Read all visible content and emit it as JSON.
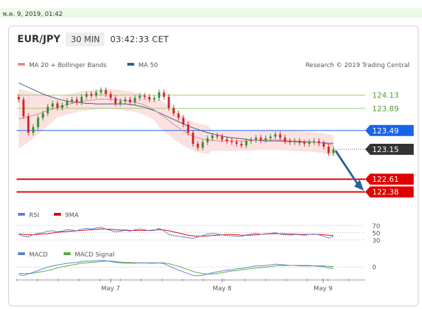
{
  "timestamp": "พ.ค. 9, 2019, 01:42",
  "header": {
    "pair": "EUR/JPY",
    "timeframe": "30 MIN",
    "time": "03:42:33 CET"
  },
  "legend": {
    "ma20_bb": "MA 20 + Bollinger Bands",
    "ma50": "MA 50",
    "credit": "Research © 2019 Trading Central",
    "rsi": "RSI",
    "rsi_ma": "9MA",
    "macd": "MACD",
    "macd_signal": "MACD Signal"
  },
  "colors": {
    "ma20": "#e58a8a",
    "ma50": "#3a5a8c",
    "band": "#fbdcdc",
    "resistance": "#9acd6e",
    "pivot": "#1565e8",
    "support": "#e00000",
    "price_label": "#333333",
    "up": "#2e8b2e",
    "down": "#d12020",
    "arrow": "#2a5fa0"
  },
  "chart_data": [
    {
      "type": "candlestick",
      "title": "EUR/JPY",
      "ylim": [
        122.2,
        124.5
      ],
      "x_labels": [
        "May 7",
        "May 8",
        "May 9"
      ],
      "levels": [
        {
          "value": 124.13,
          "label": "124.13",
          "kind": "resistance"
        },
        {
          "value": 123.89,
          "label": "123.89",
          "kind": "resistance"
        },
        {
          "value": 123.49,
          "label": "123.49",
          "kind": "pivot"
        },
        {
          "value": 122.61,
          "label": "122.61",
          "kind": "support"
        },
        {
          "value": 122.38,
          "label": "122.38",
          "kind": "support"
        }
      ],
      "last_price": {
        "value": 123.15,
        "label": "123.15"
      },
      "close": [
        124.05,
        123.75,
        123.45,
        123.55,
        123.72,
        123.8,
        123.92,
        123.98,
        123.9,
        123.95,
        124.02,
        124.05,
        124.0,
        124.1,
        124.15,
        124.12,
        124.18,
        124.22,
        124.15,
        124.08,
        123.98,
        124.02,
        124.05,
        124.0,
        124.08,
        124.12,
        124.1,
        124.05,
        124.08,
        124.18,
        124.1,
        123.9,
        123.8,
        123.72,
        123.6,
        123.45,
        123.25,
        123.18,
        123.28,
        123.35,
        123.4,
        123.38,
        123.33,
        123.3,
        123.28,
        123.25,
        123.22,
        123.3,
        123.32,
        123.36,
        123.32,
        123.35,
        123.38,
        123.42,
        123.36,
        123.3,
        123.28,
        123.3,
        123.27,
        123.25,
        123.28,
        123.3,
        123.26,
        123.2,
        123.08,
        123.15
      ],
      "ma20": [
        123.7,
        123.72,
        123.74,
        123.76,
        123.79,
        123.82,
        123.85,
        123.88,
        123.91,
        123.93,
        123.96,
        123.98,
        124.0,
        124.02,
        124.03,
        124.04,
        124.05,
        124.06,
        124.06,
        124.06,
        124.05,
        124.04,
        124.03,
        124.02,
        124.0,
        123.98,
        123.95,
        123.91,
        123.86,
        123.8,
        123.74,
        123.67,
        123.6,
        123.54,
        123.48,
        123.43,
        123.39,
        123.36,
        123.34,
        123.32,
        123.31,
        123.3,
        123.3,
        123.3,
        123.3,
        123.3,
        123.3,
        123.3,
        123.31,
        123.31,
        123.32,
        123.32,
        123.32,
        123.32,
        123.32,
        123.31,
        123.31,
        123.3,
        123.3,
        123.29,
        123.29,
        123.28,
        123.27,
        123.26,
        123.24,
        123.22
      ],
      "ma50": [
        124.35,
        124.31,
        124.27,
        124.23,
        124.19,
        124.15,
        124.12,
        124.09,
        124.06,
        124.04,
        124.02,
        124.01,
        124.0,
        123.99,
        123.98,
        123.98,
        123.97,
        123.97,
        123.97,
        123.97,
        123.97,
        123.97,
        123.97,
        123.96,
        123.95,
        123.93,
        123.91,
        123.88,
        123.85,
        123.81,
        123.77,
        123.73,
        123.69,
        123.65,
        123.61,
        123.57,
        123.54,
        123.51,
        123.48,
        123.45,
        123.43,
        123.41,
        123.39,
        123.37,
        123.36,
        123.35,
        123.34,
        123.33,
        123.32,
        123.31,
        123.31,
        123.3,
        123.3,
        123.3,
        123.3,
        123.29,
        123.29,
        123.29,
        123.28,
        123.28,
        123.28,
        123.28,
        123.27,
        123.27,
        123.26,
        123.26
      ]
    },
    {
      "type": "line",
      "title": "RSI",
      "ylim": [
        30,
        70
      ],
      "y_ticks": [
        "70",
        "50",
        "30"
      ],
      "rsi": [
        45,
        40,
        38,
        44,
        48,
        50,
        54,
        55,
        52,
        54,
        58,
        57,
        55,
        60,
        62,
        60,
        63,
        65,
        60,
        56,
        52,
        54,
        56,
        54,
        58,
        60,
        58,
        55,
        56,
        62,
        55,
        45,
        42,
        40,
        38,
        36,
        34,
        38,
        42,
        46,
        48,
        46,
        44,
        42,
        41,
        40,
        39,
        44,
        46,
        48,
        45,
        47,
        48,
        50,
        46,
        44,
        43,
        45,
        44,
        43,
        45,
        46,
        44,
        40,
        35,
        40
      ],
      "rsi_ma": [
        46,
        45,
        44,
        44,
        45,
        46,
        47,
        49,
        51,
        52,
        53,
        54,
        55,
        56,
        57,
        58,
        59,
        60,
        60,
        59,
        58,
        57,
        57,
        56,
        56,
        56,
        56,
        56,
        57,
        58,
        57,
        55,
        52,
        49,
        46,
        43,
        41,
        40,
        40,
        41,
        42,
        43,
        44,
        45,
        45,
        44,
        43,
        43,
        43,
        44,
        45,
        46,
        47,
        47,
        47,
        47,
        46,
        46,
        45,
        45,
        45,
        45,
        45,
        44,
        43,
        42
      ]
    },
    {
      "type": "line",
      "title": "MACD",
      "ylim": [
        -0.25,
        0.2
      ],
      "y_ticks": [
        "0"
      ],
      "macd": [
        -0.18,
        -0.19,
        -0.16,
        -0.12,
        -0.08,
        -0.04,
        0.0,
        0.03,
        0.05,
        0.07,
        0.09,
        0.1,
        0.11,
        0.13,
        0.14,
        0.14,
        0.15,
        0.16,
        0.15,
        0.13,
        0.11,
        0.1,
        0.09,
        0.09,
        0.09,
        0.1,
        0.1,
        0.09,
        0.09,
        0.1,
        0.08,
        0.03,
        -0.02,
        -0.07,
        -0.11,
        -0.15,
        -0.19,
        -0.2,
        -0.19,
        -0.16,
        -0.13,
        -0.11,
        -0.09,
        -0.07,
        -0.06,
        -0.04,
        -0.03,
        -0.01,
        0.01,
        0.03,
        0.03,
        0.04,
        0.05,
        0.07,
        0.06,
        0.05,
        0.04,
        0.04,
        0.03,
        0.03,
        0.03,
        0.03,
        0.02,
        0.01,
        -0.02,
        -0.03
      ],
      "signal": [
        -0.14,
        -0.15,
        -0.15,
        -0.14,
        -0.12,
        -0.1,
        -0.08,
        -0.05,
        -0.02,
        0.01,
        0.03,
        0.05,
        0.07,
        0.09,
        0.1,
        0.11,
        0.12,
        0.13,
        0.14,
        0.14,
        0.13,
        0.12,
        0.11,
        0.11,
        0.1,
        0.1,
        0.1,
        0.1,
        0.1,
        0.1,
        0.1,
        0.08,
        0.05,
        0.02,
        -0.02,
        -0.06,
        -0.1,
        -0.13,
        -0.15,
        -0.16,
        -0.16,
        -0.15,
        -0.13,
        -0.11,
        -0.09,
        -0.08,
        -0.06,
        -0.05,
        -0.03,
        -0.02,
        -0.01,
        0.0,
        0.01,
        0.03,
        0.04,
        0.04,
        0.04,
        0.04,
        0.04,
        0.04,
        0.04,
        0.03,
        0.03,
        0.03,
        0.02,
        0.01
      ]
    }
  ]
}
